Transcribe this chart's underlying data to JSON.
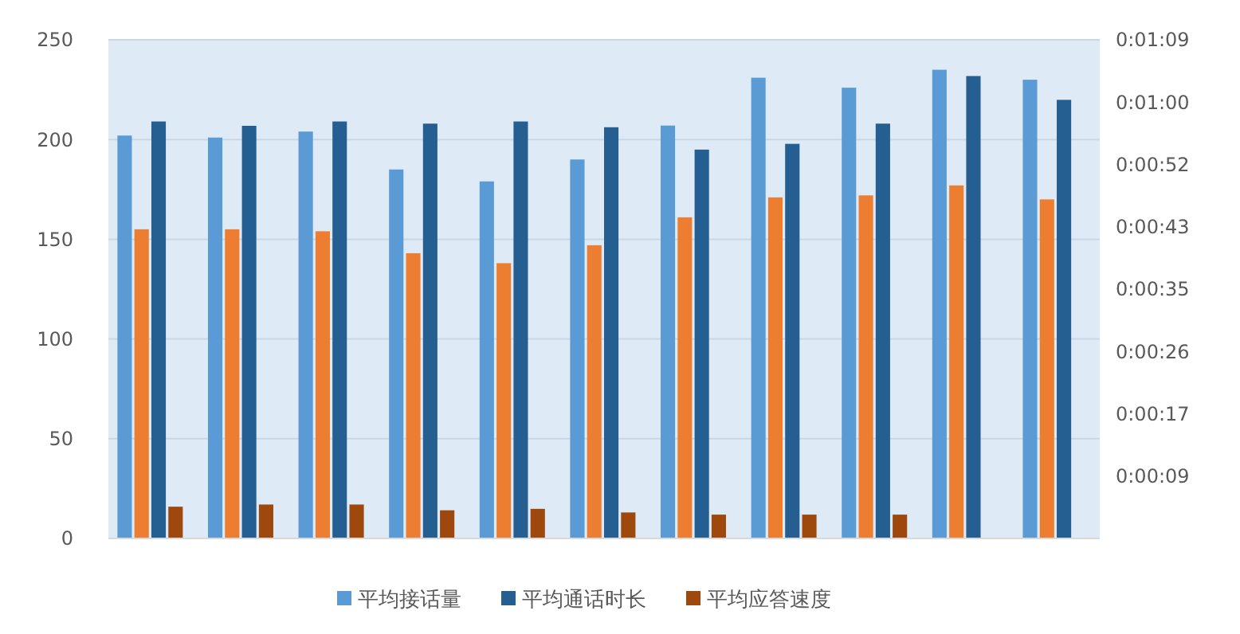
{
  "chart_data": {
    "type": "bar",
    "categories": [
      null,
      null,
      null,
      null,
      null,
      null,
      null,
      null,
      null,
      null,
      null
    ],
    "series": [
      {
        "name": "平均接话量",
        "color": "#5b9bd5",
        "values": [
          202,
          201,
          204,
          185,
          179,
          190,
          207,
          231,
          226,
          235,
          230
        ]
      },
      {
        "color": "#ed7d31",
        "values": [
          155,
          155,
          154,
          143,
          138,
          147,
          161,
          171,
          172,
          177,
          170
        ]
      },
      {
        "name": "平均通话时长",
        "color": "#255e91",
        "axis": "y2",
        "values": [
          57.8,
          57.2,
          57.8,
          57.5,
          57.8,
          57.0,
          53.9,
          54.7,
          57.5,
          64.1,
          60.8
        ]
      },
      {
        "name": "平均应答速度",
        "color": "#9e480e",
        "axis": "y2",
        "values": [
          4.4,
          4.7,
          4.7,
          3.9,
          4.1,
          3.6,
          3.3,
          3.3,
          3.3,
          null,
          null
        ]
      }
    ],
    "ylim": [
      0,
      250
    ],
    "yticks": [
      0,
      50,
      100,
      150,
      200,
      250
    ],
    "y2lim": [
      0,
      69.12
    ],
    "y2ticks": [
      {
        "value": 8.64,
        "label": "0:00:09"
      },
      {
        "value": 17.28,
        "label": "0:00:17"
      },
      {
        "value": 25.92,
        "label": "0:00:26"
      },
      {
        "value": 34.56,
        "label": "0:00:35"
      },
      {
        "value": 43.2,
        "label": "0:00:43"
      },
      {
        "value": 51.84,
        "label": "0:00:52"
      },
      {
        "value": 60.48,
        "label": "0:01:00"
      },
      {
        "value": 69.12,
        "label": "0:01:09"
      }
    ],
    "grid": "y",
    "legend": "bottom"
  }
}
